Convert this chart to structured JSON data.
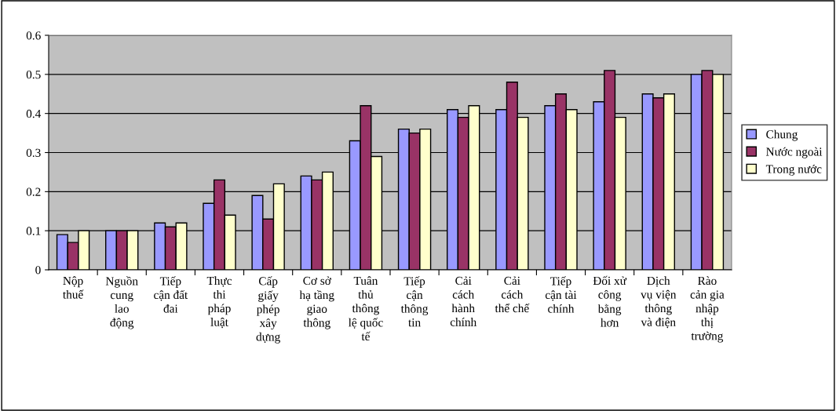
{
  "chart_data": {
    "type": "bar",
    "categories": [
      "Nộp\nthuế",
      "Nguồn\ncung\nlao\nđộng",
      "Tiếp\ncận đất\nđai",
      "Thực\nthi\npháp\nluật",
      "Cấp\ngiấy\nphép\nxây\ndựng",
      "Cơ sở\nhạ tầng\ngiao\nthông",
      "Tuân\nthủ\nthông\nlệ quốc\ntế",
      "Tiếp\ncận\nthông\ntin",
      "Cải\ncách\nhành\nchính",
      "Cải\ncách\nthể chế",
      "Tiếp\ncận tài\nchính",
      "Đối xử\ncông\nbằng\nhơn",
      "Dịch\nvụ viện\nthông\nvà điện",
      "Rào\ncản gia\nnhập\nthị\ntrường"
    ],
    "series": [
      {
        "name": "Chung",
        "color": "#9999ff",
        "values": [
          0.09,
          0.1,
          0.12,
          0.17,
          0.19,
          0.24,
          0.33,
          0.36,
          0.41,
          0.41,
          0.42,
          0.43,
          0.45,
          0.5
        ]
      },
      {
        "name": "Nước ngoài",
        "color": "#993366",
        "values": [
          0.07,
          0.1,
          0.11,
          0.23,
          0.13,
          0.23,
          0.42,
          0.35,
          0.39,
          0.48,
          0.45,
          0.51,
          0.44,
          0.51
        ]
      },
      {
        "name": "Trong nước",
        "color": "#ffffcc",
        "values": [
          0.1,
          0.1,
          0.12,
          0.14,
          0.22,
          0.25,
          0.29,
          0.36,
          0.42,
          0.39,
          0.41,
          0.39,
          0.45,
          0.5
        ]
      }
    ],
    "ylim": [
      0,
      0.6
    ],
    "yticks": [
      0,
      0.1,
      0.2,
      0.3,
      0.4,
      0.5,
      0.6
    ],
    "grid": "y",
    "legend": "right"
  }
}
